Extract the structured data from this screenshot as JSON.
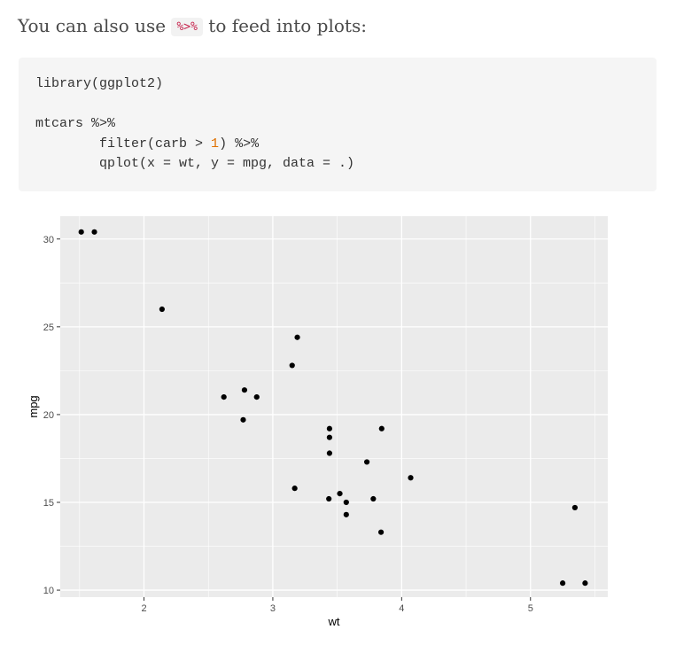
{
  "intro": {
    "before": "You can also use ",
    "code": "%>%",
    "after": " to feed into plots:"
  },
  "code": {
    "line1": "library(ggplot2)",
    "line3": "mtcars %>%",
    "line4_pre": "        filter(carb > ",
    "line4_num": "1",
    "line4_post": ") %>%",
    "line5": "        qplot(x = wt, y = mpg, data = .)"
  },
  "chart_data": {
    "type": "scatter",
    "xlabel": "wt",
    "ylabel": "mpg",
    "xlim": [
      1.35,
      5.6
    ],
    "ylim": [
      9.6,
      31.3
    ],
    "xticks": [
      2,
      3,
      4,
      5
    ],
    "yticks": [
      10,
      15,
      20,
      25,
      30
    ],
    "grid": true,
    "colors": {
      "panel": "#ebebeb",
      "grid": "#ffffff",
      "point": "#000000"
    },
    "points": [
      {
        "x": 1.513,
        "y": 30.4
      },
      {
        "x": 1.615,
        "y": 30.4
      },
      {
        "x": 2.14,
        "y": 26.0
      },
      {
        "x": 2.62,
        "y": 21.0
      },
      {
        "x": 2.77,
        "y": 19.7
      },
      {
        "x": 2.78,
        "y": 21.4
      },
      {
        "x": 2.875,
        "y": 21.0
      },
      {
        "x": 3.15,
        "y": 22.8
      },
      {
        "x": 3.17,
        "y": 15.8
      },
      {
        "x": 3.19,
        "y": 24.4
      },
      {
        "x": 3.435,
        "y": 15.2
      },
      {
        "x": 3.44,
        "y": 17.8
      },
      {
        "x": 3.44,
        "y": 18.7
      },
      {
        "x": 3.44,
        "y": 19.2
      },
      {
        "x": 3.52,
        "y": 15.5
      },
      {
        "x": 3.57,
        "y": 14.3
      },
      {
        "x": 3.57,
        "y": 15.0
      },
      {
        "x": 3.73,
        "y": 17.3
      },
      {
        "x": 3.78,
        "y": 15.2
      },
      {
        "x": 3.84,
        "y": 13.3
      },
      {
        "x": 3.845,
        "y": 19.2
      },
      {
        "x": 4.07,
        "y": 16.4
      },
      {
        "x": 5.25,
        "y": 10.4
      },
      {
        "x": 5.345,
        "y": 14.7
      },
      {
        "x": 5.424,
        "y": 10.4
      }
    ]
  }
}
